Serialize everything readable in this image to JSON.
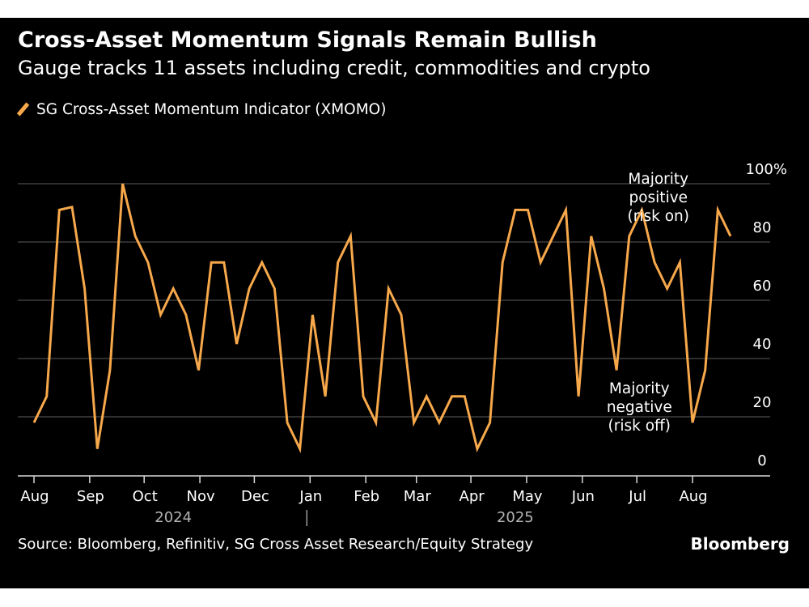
{
  "header": {
    "title": "Cross-Asset Momentum Signals Remain Bullish",
    "subtitle": "Gauge tracks 11 assets including credit, commodities and crypto"
  },
  "footer": {
    "source": "Source: Bloomberg, Refinitiv, SG Cross Asset Research/Equity Strategy",
    "brand": "Bloomberg"
  },
  "colors": {
    "background": "#000000",
    "line": "#f7a84b",
    "grid": "#4a4a4a",
    "text": "#ffffff",
    "muted": "#b3b3b3"
  },
  "chart_data": {
    "type": "line",
    "title": "Cross-Asset Momentum Signals Remain Bullish",
    "subtitle": "Gauge tracks 11 assets including credit, commodities and crypto",
    "legend": [
      "SG Cross-Asset Momentum Indicator (XMOMO)"
    ],
    "legend_position": "top-left",
    "y_axis_position": "right",
    "grid": true,
    "ylim": [
      0,
      100
    ],
    "y_ticks": [
      0,
      20,
      40,
      60,
      80,
      100
    ],
    "y_tick_labels": [
      "0",
      "20",
      "40",
      "60",
      "80",
      "100%"
    ],
    "x_ticks": [
      {
        "label": "Aug",
        "x": 0
      },
      {
        "label": "Sep",
        "x": 4.4
      },
      {
        "label": "Oct",
        "x": 8.7
      },
      {
        "label": "Nov",
        "x": 13.1
      },
      {
        "label": "Dec",
        "x": 17.4
      },
      {
        "label": "Jan",
        "x": 21.8
      },
      {
        "label": "Feb",
        "x": 26.2
      },
      {
        "label": "Mar",
        "x": 30.2
      },
      {
        "label": "Apr",
        "x": 34.5
      },
      {
        "label": "May",
        "x": 38.9
      },
      {
        "label": "Jun",
        "x": 43.3
      },
      {
        "label": "Jul",
        "x": 47.6
      },
      {
        "label": "Aug",
        "x": 52.0
      }
    ],
    "year_labels": [
      {
        "label": "2024",
        "x": 11.0
      },
      {
        "label": "2025",
        "x": 38.0
      }
    ],
    "year_divider_x": 21.8,
    "xlim": [
      -0.2,
      57.0
    ],
    "series": [
      {
        "name": "SG Cross-Asset Momentum Indicator (XMOMO)",
        "values": [
          18,
          27,
          91,
          92,
          64,
          9,
          36,
          100,
          82,
          73,
          55,
          64,
          55,
          36,
          73,
          73,
          45,
          64,
          73,
          64,
          18,
          9,
          55,
          27,
          73,
          82,
          27,
          18,
          64,
          55,
          18,
          27,
          18,
          27,
          27,
          9,
          18,
          73,
          91,
          91,
          73,
          82,
          91,
          27,
          82,
          64,
          36,
          82,
          91,
          73,
          64,
          73,
          18,
          36,
          91,
          82
        ]
      }
    ],
    "annotations": [
      {
        "lines": [
          "Majority",
          "positive",
          "(risk on)"
        ],
        "x": 49.3,
        "y": 100
      },
      {
        "lines": [
          "Majority",
          "negative",
          "(risk off)"
        ],
        "x": 47.8,
        "y": 28
      }
    ]
  }
}
